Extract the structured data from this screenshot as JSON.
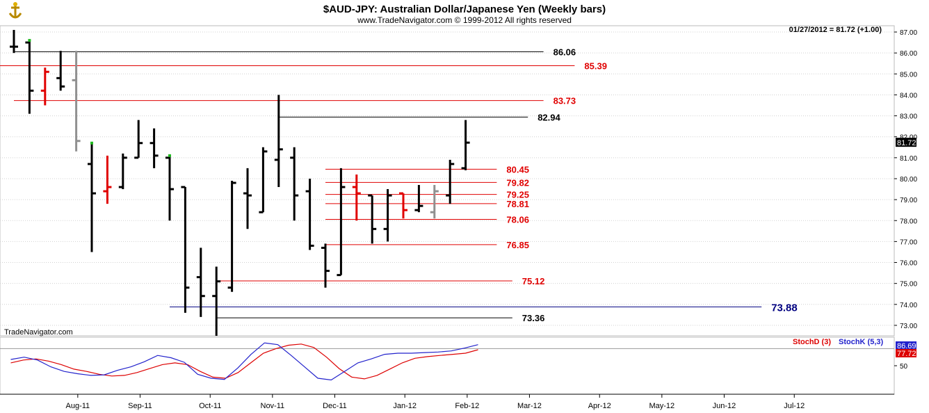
{
  "header": {
    "title": "$AUD-JPY:  Australian Dollar/Japanese Yen  (Weekly bars)",
    "copyright": "www.TradeNavigator.com © 1999-2012 All rights reserved",
    "last_quote": "01/27/2012 = 81.72 (+1.00)",
    "watermark": "TradeNavigator.com",
    "logo_icon": "anchor-logo-icon"
  },
  "colors": {
    "up": "#000000",
    "down": "#e00000",
    "neutral": "#909090",
    "green": "#22bb22",
    "blue_line": "#000080",
    "stoch_d": "#dd0000",
    "stoch_k": "#2222cc",
    "grid": "#d0d0d0"
  },
  "chart_data": [
    {
      "type": "ohlc",
      "title": "$AUD-JPY:  Australian Dollar/Japanese Yen  (Weekly bars)",
      "ylim": [
        72.5,
        87.3
      ],
      "y_ticks": [
        73,
        74,
        75,
        76,
        77,
        78,
        79,
        80,
        81,
        82,
        83,
        84,
        85,
        86,
        87
      ],
      "y_tick_labels": [
        "73.00",
        "74.00",
        "75.00",
        "76.00",
        "77.00",
        "78.00",
        "79.00",
        "80.00",
        "81.00",
        "82.00",
        "83.00",
        "84.00",
        "85.00",
        "86.00",
        "87.00"
      ],
      "last_price_label": "81.72",
      "last_price": 81.72,
      "bars": [
        {
          "o": 86.3,
          "h": 87.1,
          "l": 86.0,
          "c": 86.3,
          "color": "black"
        },
        {
          "o": 86.5,
          "h": 86.6,
          "l": 83.1,
          "c": 84.2,
          "color": "black"
        },
        {
          "o": 84.2,
          "h": 85.3,
          "l": 83.5,
          "c": 85.1,
          "color": "red"
        },
        {
          "o": 84.8,
          "h": 86.1,
          "l": 84.2,
          "c": 84.4,
          "color": "black"
        },
        {
          "o": 84.7,
          "h": 86.1,
          "l": 81.3,
          "c": 81.8,
          "color": "gray"
        },
        {
          "o": 80.7,
          "h": 81.7,
          "l": 76.5,
          "c": 79.3,
          "color": "black"
        },
        {
          "o": 79.4,
          "h": 81.1,
          "l": 78.8,
          "c": 79.6,
          "color": "red"
        },
        {
          "o": 79.6,
          "h": 81.2,
          "l": 79.5,
          "c": 81.0,
          "color": "black"
        },
        {
          "o": 81.0,
          "h": 82.8,
          "l": 81.0,
          "c": 81.7,
          "color": "black"
        },
        {
          "o": 81.7,
          "h": 82.4,
          "l": 80.5,
          "c": 81.1,
          "color": "black"
        },
        {
          "o": 81.0,
          "h": 81.1,
          "l": 78.0,
          "c": 79.5,
          "color": "black"
        },
        {
          "o": 79.6,
          "h": 79.6,
          "l": 73.6,
          "c": 74.8,
          "color": "black"
        },
        {
          "o": 75.3,
          "h": 76.7,
          "l": 73.4,
          "c": 74.4,
          "color": "black"
        },
        {
          "o": 74.4,
          "h": 75.8,
          "l": 72.5,
          "c": 75.1,
          "color": "black"
        },
        {
          "o": 74.8,
          "h": 79.9,
          "l": 74.6,
          "c": 79.8,
          "color": "black"
        },
        {
          "o": 79.3,
          "h": 80.5,
          "l": 77.6,
          "c": 79.2,
          "color": "black"
        },
        {
          "o": 78.4,
          "h": 81.5,
          "l": 78.4,
          "c": 81.3,
          "color": "black"
        },
        {
          "o": 80.9,
          "h": 84.0,
          "l": 79.6,
          "c": 81.4,
          "color": "black"
        },
        {
          "o": 81.0,
          "h": 81.5,
          "l": 78.0,
          "c": 79.2,
          "color": "black"
        },
        {
          "o": 79.4,
          "h": 80.0,
          "l": 76.6,
          "c": 76.8,
          "color": "black"
        },
        {
          "o": 76.7,
          "h": 76.9,
          "l": 74.8,
          "c": 75.6,
          "color": "black"
        },
        {
          "o": 75.4,
          "h": 80.5,
          "l": 75.4,
          "c": 79.6,
          "color": "black"
        },
        {
          "o": 79.6,
          "h": 80.2,
          "l": 78.0,
          "c": 79.3,
          "color": "red"
        },
        {
          "o": 79.2,
          "h": 79.2,
          "l": 76.9,
          "c": 77.6,
          "color": "black"
        },
        {
          "o": 77.6,
          "h": 79.5,
          "l": 77.0,
          "c": 79.2,
          "color": "black"
        },
        {
          "o": 79.3,
          "h": 79.3,
          "l": 78.1,
          "c": 78.5,
          "color": "red"
        },
        {
          "o": 78.5,
          "h": 79.7,
          "l": 78.4,
          "c": 78.7,
          "color": "black"
        },
        {
          "o": 78.4,
          "h": 79.7,
          "l": 78.1,
          "c": 79.4,
          "color": "gray"
        },
        {
          "o": 79.2,
          "h": 80.9,
          "l": 78.8,
          "c": 80.7,
          "color": "black"
        },
        {
          "o": 80.5,
          "h": 82.8,
          "l": 80.4,
          "c": 81.72,
          "color": "black"
        }
      ],
      "green_marks": [
        {
          "bar": 1,
          "price": 86.6
        },
        {
          "bar": 5,
          "price": 81.7
        },
        {
          "bar": 10,
          "price": 81.1
        }
      ],
      "levels": [
        {
          "value": 86.06,
          "label": "86.06",
          "color": "black",
          "from_bar": 0,
          "to_bar": 34
        },
        {
          "value": 85.39,
          "label": "85.39",
          "color": "red",
          "from_bar": -2,
          "to_bar": 36
        },
        {
          "value": 83.73,
          "label": "83.73",
          "color": "red",
          "from_bar": 0,
          "to_bar": 34
        },
        {
          "value": 82.94,
          "label": "82.94",
          "color": "black",
          "from_bar": 17,
          "to_bar": 33
        },
        {
          "value": 80.45,
          "label": "80.45",
          "color": "red",
          "from_bar": 20,
          "to_bar": 31
        },
        {
          "value": 79.82,
          "label": "79.82",
          "color": "red",
          "from_bar": 20,
          "to_bar": 31
        },
        {
          "value": 79.25,
          "label": "79.25",
          "color": "red",
          "from_bar": 20,
          "to_bar": 31
        },
        {
          "value": 78.81,
          "label": "78.81",
          "color": "red",
          "from_bar": 20,
          "to_bar": 31
        },
        {
          "value": 78.06,
          "label": "78.06",
          "color": "red",
          "from_bar": 20,
          "to_bar": 31
        },
        {
          "value": 76.85,
          "label": "76.85",
          "color": "red",
          "from_bar": 20,
          "to_bar": 31
        },
        {
          "value": 75.12,
          "label": "75.12",
          "color": "red",
          "from_bar": 13,
          "to_bar": 32
        },
        {
          "value": 73.88,
          "label": "73.88",
          "color": "blue",
          "from_bar": 10,
          "to_bar": 48
        },
        {
          "value": 73.36,
          "label": "73.36",
          "color": "black",
          "from_bar": 13,
          "to_bar": 32
        }
      ]
    },
    {
      "type": "line",
      "title": "",
      "ylim": [
        0,
        100
      ],
      "y_ticks": [
        50
      ],
      "y_tick_labels": [
        "50"
      ],
      "ref_line": 80,
      "last_labels": {
        "k": "86.69",
        "d": "77.72"
      },
      "series": [
        {
          "name": "StochD (3)",
          "color": "red",
          "values": [
            55,
            60,
            62,
            58,
            52,
            44,
            40,
            35,
            32,
            33,
            38,
            45,
            52,
            55,
            52,
            40,
            30,
            28,
            38,
            55,
            72,
            80,
            86,
            88,
            82,
            65,
            45,
            30,
            27,
            33,
            44,
            55,
            63,
            66,
            68,
            70,
            72,
            78
          ]
        },
        {
          "name": "StochK (5,3)",
          "color": "blue",
          "values": [
            61,
            65,
            60,
            48,
            40,
            36,
            33,
            34,
            42,
            48,
            57,
            68,
            64,
            56,
            35,
            28,
            26,
            46,
            70,
            90,
            87,
            68,
            48,
            28,
            25,
            40,
            55,
            62,
            70,
            72,
            72,
            73,
            74,
            76,
            81,
            87
          ]
        }
      ],
      "k_offset": 0,
      "d_offset": 0
    }
  ],
  "x_axis": {
    "labels": [
      "Aug-11",
      "Sep-11",
      "Oct-11",
      "Nov-11",
      "Dec-11",
      "Jan-12",
      "Feb-12",
      "Mar-12",
      "Apr-12",
      "May-12",
      "Jun-12",
      "Jul-12"
    ],
    "positions_bar": [
      4.1,
      8.1,
      12.6,
      16.6,
      20.6,
      25.1,
      29.1,
      33.1,
      37.6,
      41.6,
      45.6,
      50.1
    ]
  }
}
